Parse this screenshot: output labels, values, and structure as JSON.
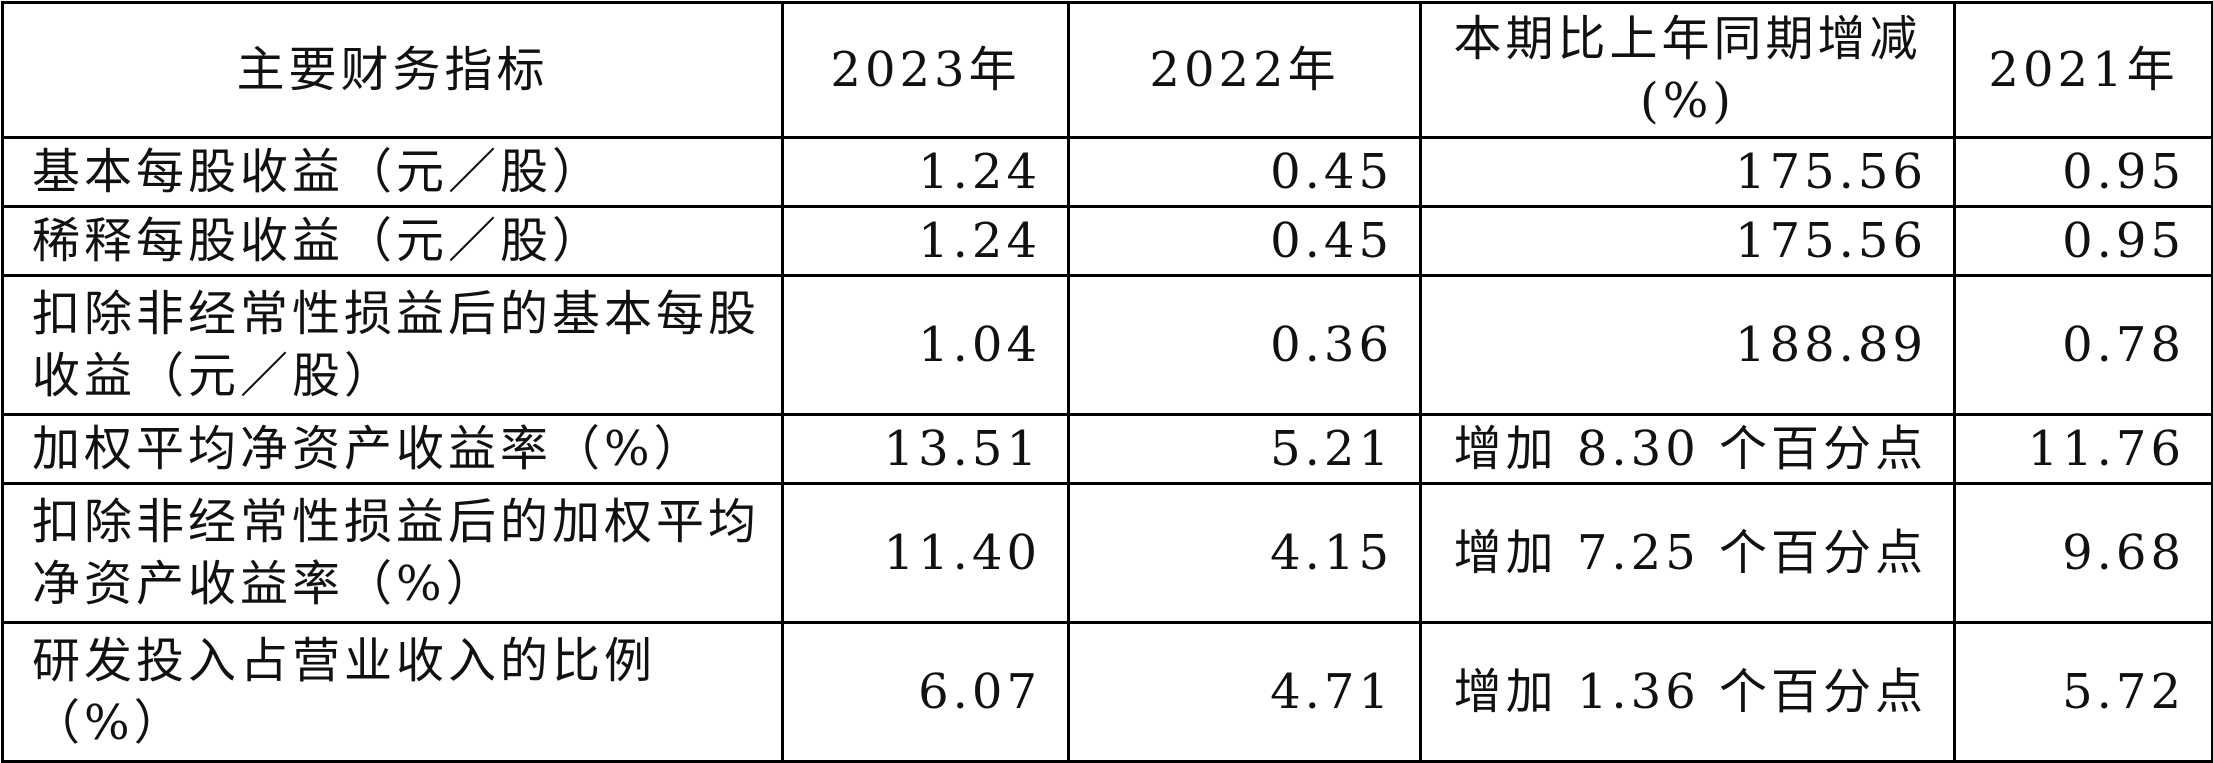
{
  "table": {
    "header": [
      "主要财务指标",
      "2023年",
      "2022年",
      "本期比上年同期增减(%)",
      "2021年"
    ],
    "rows": [
      [
        "基本每股收益（元／股）",
        "1.24",
        "0.45",
        "175.56",
        "0.95"
      ],
      [
        "稀释每股收益（元／股）",
        "1.24",
        "0.45",
        "175.56",
        "0.95"
      ],
      [
        "扣除非经常性损益后的基本每股收益（元／股）",
        "1.04",
        "0.36",
        "188.89",
        "0.78"
      ],
      [
        "加权平均净资产收益率（%）",
        "13.51",
        "5.21",
        "增加 8.30 个百分点",
        "11.76"
      ],
      [
        "扣除非经常性损益后的加权平均净资产收益率（%）",
        "11.40",
        "4.15",
        "增加 7.25 个百分点",
        "9.68"
      ],
      [
        "研发投入占营业收入的比例（%）",
        "6.07",
        "4.71",
        "增加 1.36 个百分点",
        "5.72"
      ]
    ]
  }
}
